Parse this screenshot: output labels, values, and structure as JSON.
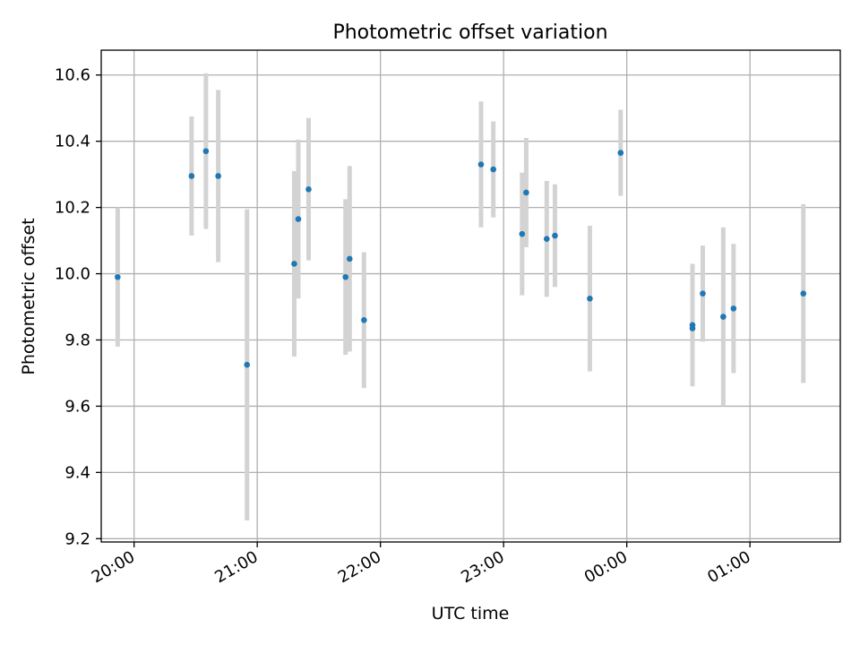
{
  "chart_data": {
    "type": "scatter",
    "title": "Photometric offset variation",
    "xlabel": "UTC time",
    "ylabel": "Photometric offset",
    "x_tick_labels": [
      "20:00",
      "21:00",
      "22:00",
      "23:00",
      "00:00",
      "01:00"
    ],
    "x_tick_times": [
      "20:00",
      "21:00",
      "22:00",
      "23:00",
      "00:00",
      "01:00"
    ],
    "xlim": [
      "19:44",
      "01:44"
    ],
    "y_ticks": [
      9.2,
      9.4,
      9.6,
      9.8,
      10.0,
      10.2,
      10.4,
      10.6
    ],
    "ylim": [
      9.19,
      10.675
    ],
    "grid": true,
    "marker_color": "#1f77b4",
    "errorbar_color": "#d3d3d3",
    "series": [
      {
        "points": [
          {
            "x": "19:52",
            "y": 9.99,
            "yerr": 0.21
          },
          {
            "x": "20:28",
            "y": 10.295,
            "yerr": 0.18
          },
          {
            "x": "20:35",
            "y": 10.37,
            "yerr": 0.235
          },
          {
            "x": "20:41",
            "y": 10.295,
            "yerr": 0.26
          },
          {
            "x": "20:55",
            "y": 9.725,
            "yerr": 0.47
          },
          {
            "x": "21:18",
            "y": 10.03,
            "yerr": 0.28
          },
          {
            "x": "21:20",
            "y": 10.165,
            "yerr": 0.24
          },
          {
            "x": "21:25",
            "y": 10.255,
            "yerr": 0.215
          },
          {
            "x": "21:43",
            "y": 9.99,
            "yerr": 0.235
          },
          {
            "x": "21:45",
            "y": 10.045,
            "yerr": 0.28
          },
          {
            "x": "21:52",
            "y": 9.86,
            "yerr": 0.205
          },
          {
            "x": "22:49",
            "y": 10.33,
            "yerr": 0.19
          },
          {
            "x": "22:55",
            "y": 10.315,
            "yerr": 0.145
          },
          {
            "x": "23:09",
            "y": 10.12,
            "yerr": 0.185
          },
          {
            "x": "23:11",
            "y": 10.245,
            "yerr": 0.165
          },
          {
            "x": "23:21",
            "y": 10.105,
            "yerr": 0.175
          },
          {
            "x": "23:25",
            "y": 10.115,
            "yerr": 0.155
          },
          {
            "x": "23:42",
            "y": 9.925,
            "yerr": 0.22
          },
          {
            "x": "23:57",
            "y": 10.365,
            "yerr": 0.13
          },
          {
            "x": "00:32",
            "y": 9.845,
            "yerr": 0.185
          },
          {
            "x": "00:32",
            "y": 9.835,
            "yerr": 0.165
          },
          {
            "x": "00:37",
            "y": 9.94,
            "yerr": 0.145
          },
          {
            "x": "00:47",
            "y": 9.87,
            "yerr": 0.27
          },
          {
            "x": "00:52",
            "y": 9.895,
            "yerr": 0.195
          },
          {
            "x": "01:26",
            "y": 9.94,
            "yerr": 0.27
          }
        ]
      }
    ]
  }
}
